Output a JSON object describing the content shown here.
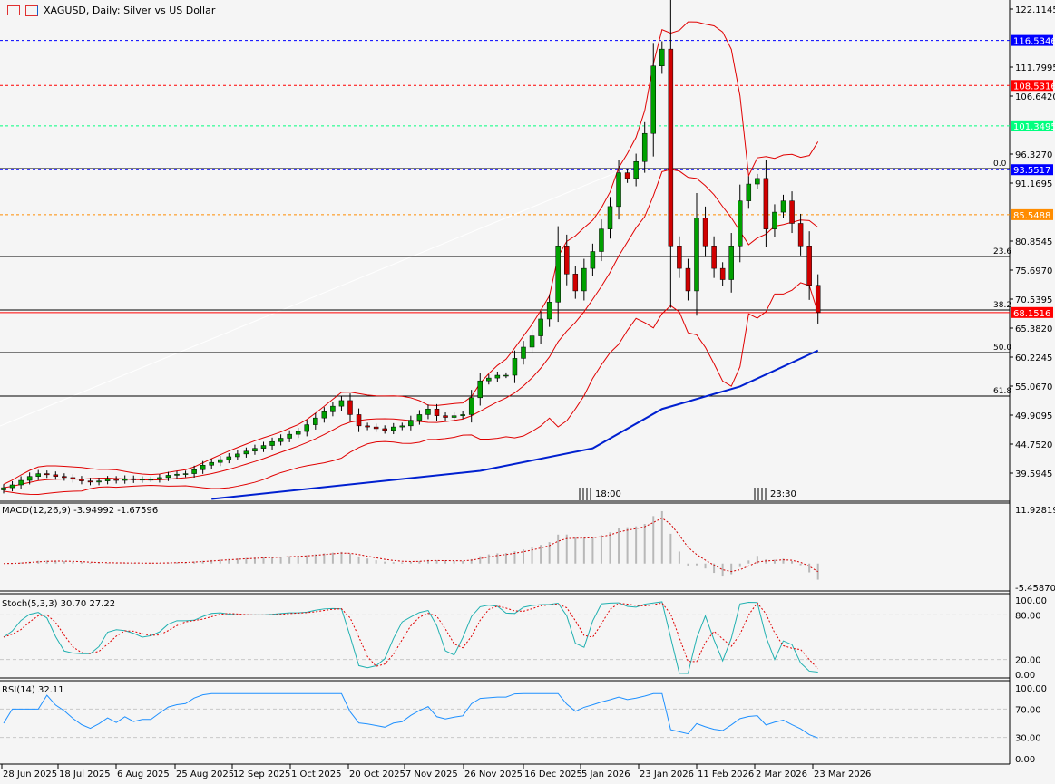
{
  "header": {
    "title": "XAGUSD, Daily:  Silver vs US Dollar"
  },
  "colors": {
    "bull": "#00a000",
    "bear": "#d00000",
    "bands": "#e00000",
    "ma": "#0020d0",
    "stoch_main": "#20b0b0",
    "stoch_signal": "#e00000",
    "rsi": "#1e90ff",
    "macd_hist": "#b8b8b8"
  },
  "price_axis": [
    "122.1145",
    "111.7995",
    "106.6420",
    "96.3270",
    "91.1695",
    "80.8545",
    "75.6970",
    "70.5395",
    "65.3820",
    "60.2245",
    "55.0670",
    "49.9095",
    "44.7520",
    "39.5945"
  ],
  "levels": [
    {
      "price": 116.5346,
      "label": "116.5346",
      "color": "#0000ff",
      "style": "dashed"
    },
    {
      "price": 108.5316,
      "label": "108.5316",
      "color": "#ff0000",
      "style": "dashed"
    },
    {
      "price": 101.3495,
      "label": "101.3495",
      "color": "#00ff7f",
      "style": "dashed"
    },
    {
      "price": 93.5517,
      "label": "93.5517",
      "color": "#0000ff",
      "style": "dashed"
    },
    {
      "price": 85.5488,
      "label": "85.5488",
      "color": "#ff8c00",
      "style": "dashed"
    },
    {
      "price": 68.1516,
      "label": "68.1516",
      "color": "#ff0000",
      "style": "solid"
    }
  ],
  "fibonacci": [
    {
      "level": "0.0",
      "price": 93.75
    },
    {
      "level": "23.6",
      "price": 78.11
    },
    {
      "level": "38.2",
      "price": 68.6
    },
    {
      "level": "50.0",
      "price": 61.03
    },
    {
      "level": "61.8",
      "price": 53.3
    }
  ],
  "time_markers": [
    "18:00",
    "23:30"
  ],
  "x_axis": [
    "28 Jun 2025",
    "18 Jul 2025",
    "6 Aug 2025",
    "25 Aug 2025",
    "12 Sep 2025",
    "1 Oct 2025",
    "20 Oct 2025",
    "7 Nov 2025",
    "26 Nov 2025",
    "16 Dec 2025",
    "5 Jan 2026",
    "23 Jan 2026",
    "11 Feb 2026",
    "2 Mar 2026",
    "23 Mar 2026"
  ],
  "macd": {
    "label": "MACD(12,26,9) -3.94992 -1.67596",
    "max": "11.92819",
    "min": "-5.45870",
    "ylim": [
      -5.4587,
      11.92819
    ]
  },
  "stoch": {
    "label": "Stoch(5,3,3) 30.70 27.22",
    "ticks": [
      "100.00",
      "80.00",
      "20.00",
      "0.00"
    ]
  },
  "rsi": {
    "label": "RSI(14) 32.11",
    "ticks": [
      "100.00",
      "70.00",
      "30.00",
      "0.00"
    ]
  },
  "chart_data": {
    "type": "candlestick",
    "title": "XAGUSD, Daily:  Silver vs US Dollar",
    "ylim": [
      39.5945,
      122.1145
    ],
    "closes": [
      37,
      37.5,
      38.3,
      39,
      39.5,
      39.3,
      39,
      38.8,
      38.5,
      38.2,
      38,
      38.2,
      38.5,
      38.3,
      38.6,
      38.4,
      38.5,
      38.5,
      38.8,
      39.2,
      39.4,
      39.5,
      40.2,
      41,
      41.5,
      42,
      42.5,
      43,
      43.5,
      44,
      44.5,
      45.2,
      45.8,
      46.5,
      47,
      48.2,
      49.4,
      50.5,
      51.5,
      52.5,
      50,
      48,
      47.8,
      47.5,
      47.2,
      47.8,
      48,
      49,
      50,
      51,
      49.8,
      49.5,
      49.8,
      50,
      53,
      56,
      56.5,
      57,
      57,
      60,
      62,
      64,
      67,
      70,
      80,
      75,
      72,
      76,
      79,
      83,
      87,
      93,
      92,
      95,
      100,
      112,
      115,
      80,
      76,
      72,
      85,
      80,
      76,
      74,
      80,
      88,
      91,
      92,
      83,
      86,
      88,
      84,
      80,
      73,
      68.15
    ],
    "ma200": [
      [
        24,
        35
      ],
      [
        55,
        40
      ],
      [
        68,
        44
      ],
      [
        76,
        51
      ],
      [
        85,
        55
      ],
      [
        94,
        61.4
      ]
    ],
    "grid": false
  }
}
